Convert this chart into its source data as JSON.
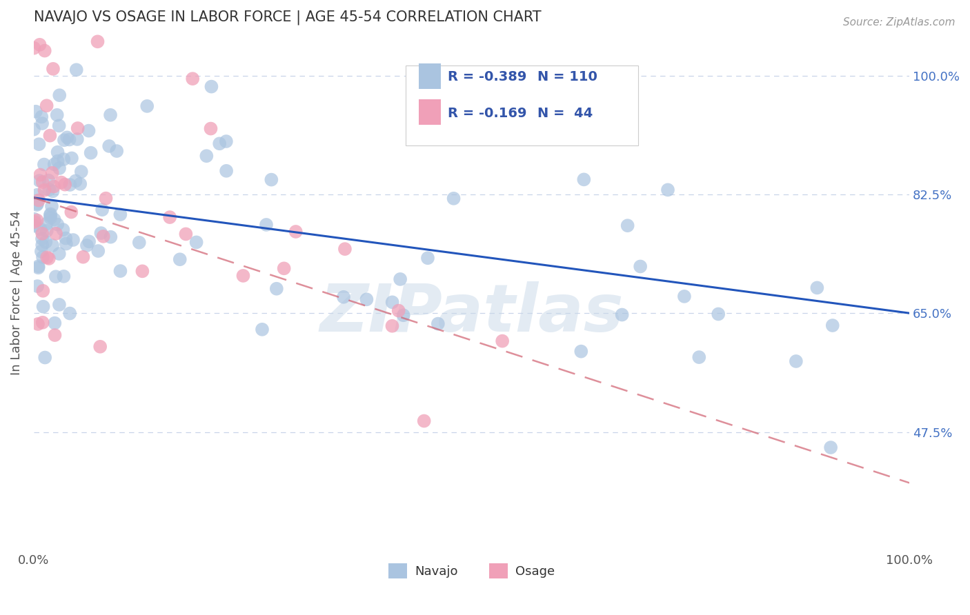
{
  "title": "NAVAJO VS OSAGE IN LABOR FORCE | AGE 45-54 CORRELATION CHART",
  "source_text": "Source: ZipAtlas.com",
  "ylabel": "In Labor Force | Age 45-54",
  "xlim": [
    0.0,
    1.0
  ],
  "ylim": [
    0.3,
    1.06
  ],
  "ytick_positions": [
    0.475,
    0.65,
    0.825,
    1.0
  ],
  "ytick_labels": [
    "47.5%",
    "65.0%",
    "82.5%",
    "100.0%"
  ],
  "navajo_R": -0.389,
  "navajo_N": 110,
  "osage_R": -0.169,
  "osage_N": 44,
  "navajo_color": "#aac4e0",
  "osage_color": "#f0a0b8",
  "navajo_line_color": "#2255bb",
  "osage_line_color": "#d06070",
  "background_color": "#ffffff",
  "grid_color": "#c8d4e8",
  "watermark_text": "ZIPatlas",
  "legend_label_navajo": "Navajo",
  "legend_label_osage": "Osage",
  "nav_line_start": 0.82,
  "nav_line_end": 0.65,
  "osa_line_start": 0.82,
  "osa_line_end": 0.4
}
